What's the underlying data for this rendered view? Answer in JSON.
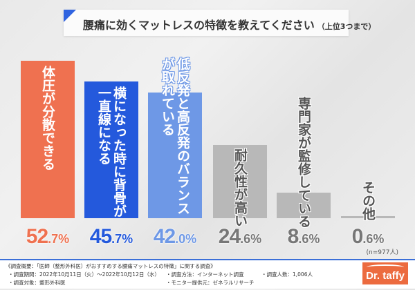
{
  "title": {
    "main": "腰痛に効くマットレスの特徴を教えてください",
    "sub": "（上位3つまで）"
  },
  "chart_data": {
    "type": "bar",
    "title": "腰痛に効くマットレスの特徴を教えてください（上位3つまで）",
    "categories": [
      "体圧が分散できる",
      "横になった時に背骨が一直線になる",
      "低反発と高反発のバランスが取れている",
      "耐久性が高い",
      "専門家が監修している",
      "その他"
    ],
    "label_lines": [
      [
        "体圧が分散できる"
      ],
      [
        "横になった時に背骨が",
        "一直線になる"
      ],
      [
        "低反発と高反発のバランス",
        "が取れている"
      ],
      [
        "耐久性が高い"
      ],
      [
        "専門家が監修している"
      ],
      [
        "その他"
      ]
    ],
    "values": [
      52.7,
      45.7,
      42.0,
      24.6,
      8.6,
      0.6
    ],
    "unit": "%",
    "colors": [
      "#ef7150",
      "#2459dc",
      "#6e98e6",
      "#b8b8b8",
      "#b8b8b8",
      "#b8b8b8"
    ],
    "ylim": [
      0,
      55
    ],
    "grid": false,
    "note": "(n=977人)"
  },
  "footer": {
    "overview": "《調査概要：「医師（整形外科医）がおすすめする腰痛マットレスの特徴」に関する調査》",
    "period": "・調査期間：2022年10月11日（火）～2022年10月12日（水）",
    "method": "・調査方法：インターネット調査",
    "count": "・調査人数：1,006人",
    "target": "・調査対象：整形外科医",
    "provider": "・モニター提供元：ゼネラルリサーチ",
    "logo": "Dr. taffy"
  }
}
